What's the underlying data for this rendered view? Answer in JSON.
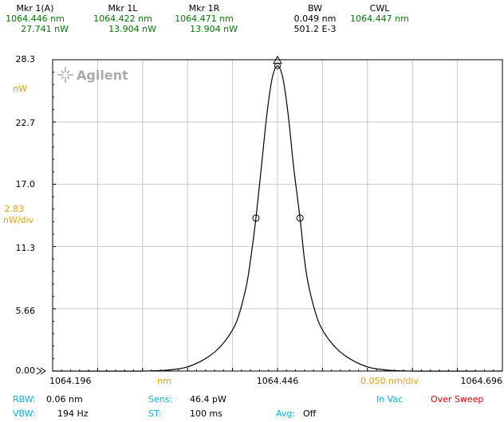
{
  "markers": [
    {
      "title": "Mkr 1(A)",
      "line1": "1064.446 nm",
      "line2": "27.741 nW"
    },
    {
      "title": "Mkr 1L",
      "line1": "1064.422 nm",
      "line2": "13.904 nW"
    },
    {
      "title": "Mkr 1R",
      "line1": "1064.471 nm",
      "line2": "13.904 nW"
    },
    {
      "title": "BW",
      "line1": "0.049 nm",
      "line2": "501.2 E-3"
    },
    {
      "title": "CWL",
      "line1": "1064.447 nm",
      "line2": ""
    }
  ],
  "logo": {
    "text": "Agilent"
  },
  "y_axis": {
    "unit": "nW",
    "scale_value": "2.83",
    "scale_unit": "nW/div",
    "labels": [
      "28.3",
      "22.7",
      "17.0",
      "11.3",
      "5.66",
      "0.00"
    ]
  },
  "x_axis": {
    "start": "1064.196",
    "center": "1064.446",
    "stop": "1064.696",
    "unit": "nm",
    "scale": "0.050 nm/div"
  },
  "status": {
    "rbw_label": "RBW:",
    "rbw_value": "0.06 nm",
    "vbw_label": "VBW:",
    "vbw_value": "194 Hz",
    "sens_label": "Sens:",
    "sens_value": "46.4 pW",
    "st_label": "ST:",
    "st_value": "100 ms",
    "avg_label": "Avg:",
    "avg_value": "Off",
    "in_vac": "In Vac",
    "over_sweep": "Over Sweep"
  },
  "colors": {
    "marker_text": "#007a00",
    "scale_text": "#e8a000",
    "status_label": "#00b4e8",
    "warning": "#e00000",
    "trace": "#000000",
    "grid": "#c8c8c8"
  },
  "chart_data": {
    "type": "line",
    "title": "",
    "xlabel": "nm",
    "ylabel": "nW",
    "xlim": [
      1064.196,
      1064.696
    ],
    "ylim": [
      0,
      28.3
    ],
    "grid": true,
    "series": [
      {
        "x": [
          1064.196,
          1064.296,
          1064.336,
          1064.356,
          1064.371,
          1064.381,
          1064.391,
          1064.401,
          1064.411,
          1064.416,
          1064.422,
          1064.428,
          1064.434,
          1064.44,
          1064.446,
          1064.452,
          1064.458,
          1064.464,
          1064.471,
          1064.476,
          1064.481,
          1064.491,
          1064.501,
          1064.511,
          1064.521,
          1064.536,
          1064.556,
          1064.596,
          1064.696
        ],
        "y": [
          0.0,
          0.0,
          0.2,
          0.7,
          1.4,
          2.1,
          3.1,
          4.6,
          7.6,
          10.1,
          13.9,
          18.5,
          23.2,
          26.6,
          27.74,
          26.6,
          23.2,
          18.5,
          13.9,
          10.1,
          7.6,
          4.6,
          3.1,
          2.1,
          1.4,
          0.7,
          0.2,
          0.0,
          0.0
        ]
      }
    ],
    "markers": [
      {
        "name": "Mkr 1(A)",
        "x": 1064.446,
        "y": 27.741
      },
      {
        "name": "Mkr 1L",
        "x": 1064.422,
        "y": 13.904
      },
      {
        "name": "Mkr 1R",
        "x": 1064.471,
        "y": 13.904
      }
    ]
  }
}
